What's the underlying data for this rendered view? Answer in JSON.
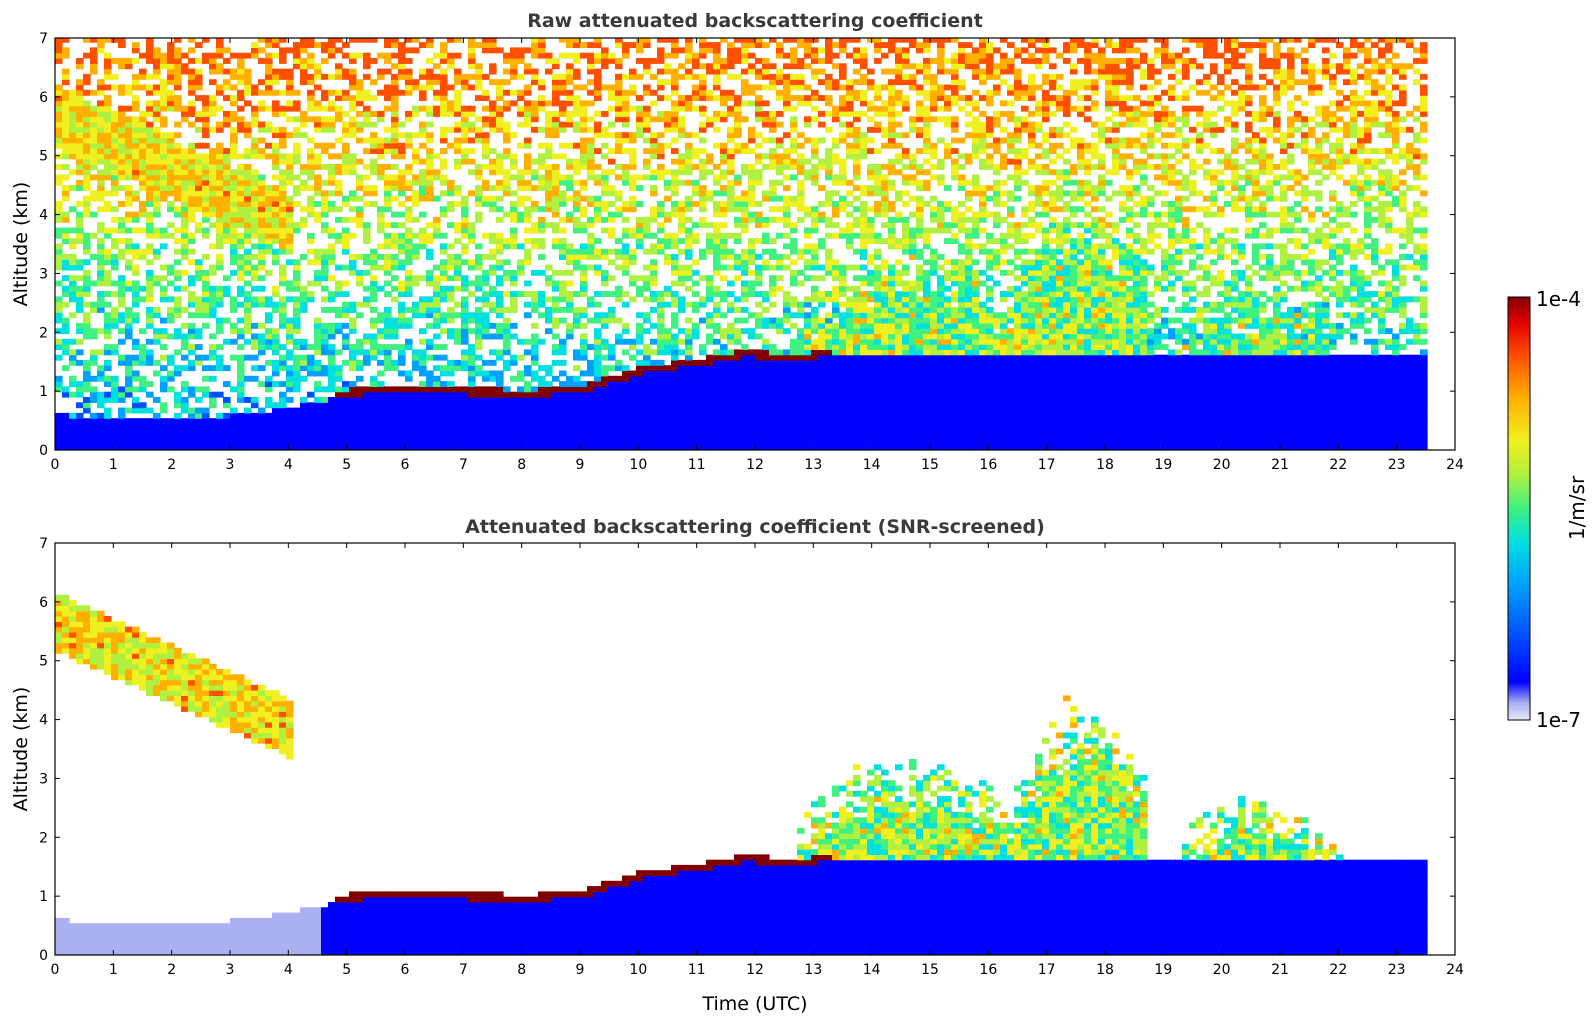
{
  "chart_data": [
    {
      "type": "heatmap",
      "title": "Raw attenuated backscattering coefficient",
      "xlabel": "",
      "ylabel": "Altitude (km)",
      "xlim": [
        0,
        24
      ],
      "ylim": [
        0,
        7
      ],
      "xticks": [
        "0",
        "1",
        "2",
        "3",
        "4",
        "5",
        "6",
        "7",
        "8",
        "9",
        "10",
        "11",
        "12",
        "13",
        "14",
        "15",
        "16",
        "17",
        "18",
        "19",
        "20",
        "21",
        "22",
        "23",
        "24"
      ],
      "yticks": [
        "0",
        "1",
        "2",
        "3",
        "4",
        "5",
        "6",
        "7"
      ],
      "time_extent": [
        0,
        23.5
      ],
      "features": {
        "boundary_layer_top_km": [
          [
            0,
            0.55
          ],
          [
            2,
            0.45
          ],
          [
            3.5,
            0.6
          ],
          [
            4.5,
            0.8
          ],
          [
            5.5,
            0.95
          ],
          [
            7,
            0.9
          ],
          [
            8,
            0.85
          ],
          [
            9,
            0.95
          ],
          [
            10,
            1.25
          ],
          [
            11,
            1.4
          ],
          [
            11.8,
            1.55
          ],
          [
            12.5,
            1.45
          ],
          [
            13.2,
            1.55
          ]
        ],
        "cirrus": [
          {
            "t0": 0.0,
            "t1": 4.0,
            "top_km": 6.1,
            "base_km": 4.2
          }
        ],
        "convective_clouds": [
          {
            "t0": 12.7,
            "t1": 16.5,
            "top_km": 2.9
          },
          {
            "t0": 16.4,
            "t1": 18.7,
            "top_km": 3.7
          },
          {
            "t0": 19.0,
            "t1": 22.0,
            "top_km": 2.3
          }
        ]
      }
    },
    {
      "type": "heatmap",
      "title": "Attenuated backscattering coefficient (SNR-screened)",
      "xlabel": "Time (UTC)",
      "ylabel": "Altitude (km)",
      "xlim": [
        0,
        24
      ],
      "ylim": [
        0,
        7
      ],
      "xticks": [
        "0",
        "1",
        "2",
        "3",
        "4",
        "5",
        "6",
        "7",
        "8",
        "9",
        "10",
        "11",
        "12",
        "13",
        "14",
        "15",
        "16",
        "17",
        "18",
        "19",
        "20",
        "21",
        "22",
        "23",
        "24"
      ],
      "yticks": [
        "0",
        "1",
        "2",
        "3",
        "4",
        "5",
        "6",
        "7"
      ],
      "time_extent": [
        0,
        23.5
      ],
      "screened": true
    }
  ],
  "colorbar": {
    "label": "1/m/sr",
    "min_label": "1e-7",
    "max_label": "1e-4",
    "scale": "log",
    "colors": [
      "#e8e8f8",
      "#aab0f0",
      "#0000ff",
      "#0050ff",
      "#00a0ff",
      "#00e0e0",
      "#40f080",
      "#b0f040",
      "#f0f020",
      "#ffb000",
      "#ff5000",
      "#e00000",
      "#800000"
    ]
  }
}
